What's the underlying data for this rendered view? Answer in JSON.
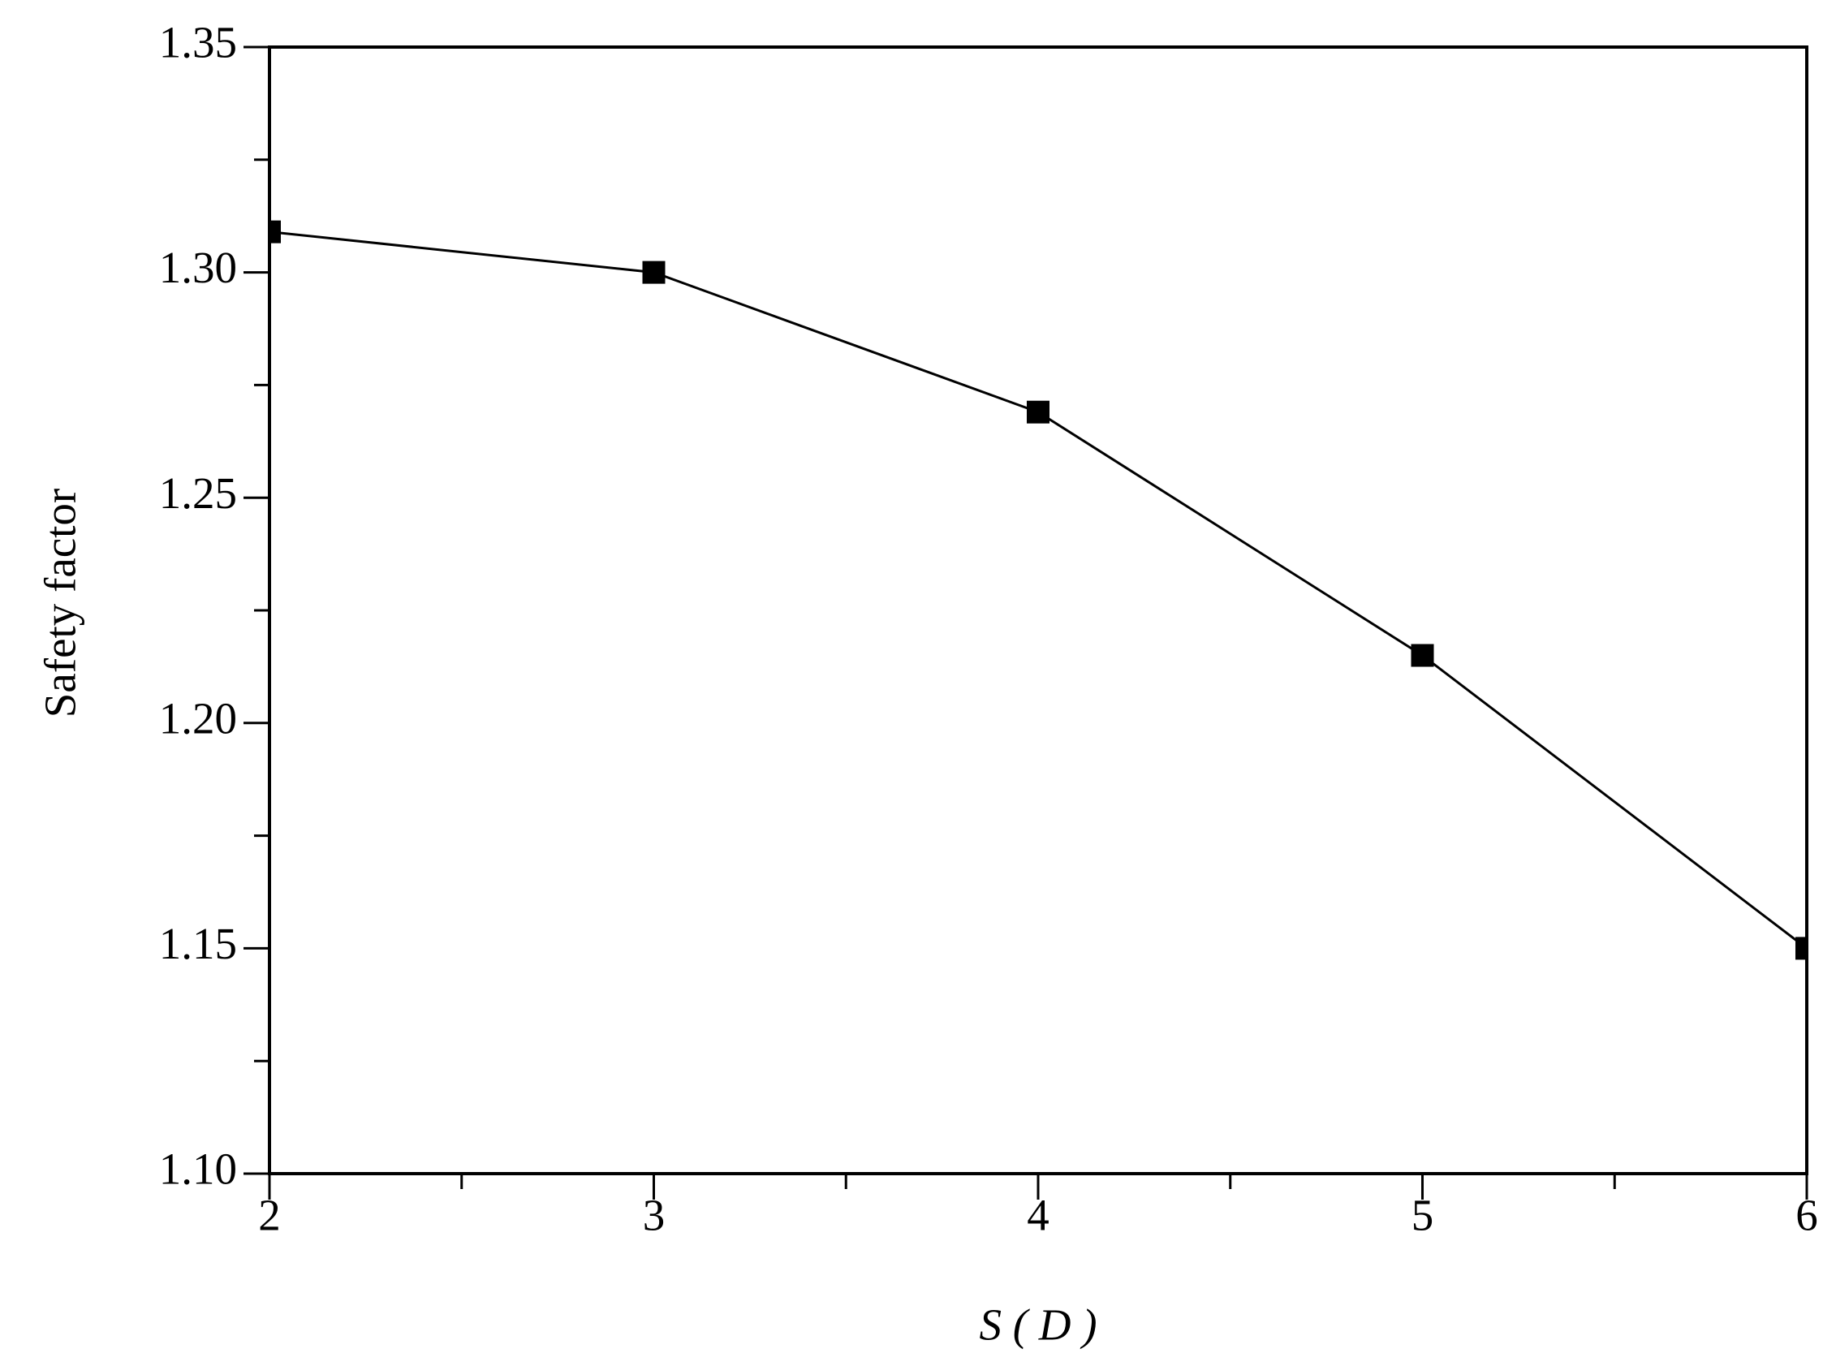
{
  "chart_data": {
    "type": "line",
    "xlabel": "S ( D )",
    "ylabel": "Safety factor",
    "x": [
      2,
      3,
      4,
      5,
      6
    ],
    "series": [
      {
        "color": "#000000",
        "marker": "square",
        "values": [
          1.309,
          1.3,
          1.269,
          1.215,
          1.15
        ]
      }
    ],
    "xlim": [
      2,
      6
    ],
    "xticks": [
      2,
      3,
      4,
      5,
      6
    ],
    "xminor_ticks": [
      2.5,
      3.5,
      4.5,
      5.5
    ],
    "ylim": [
      1.1,
      1.35
    ],
    "yticks": [
      {
        "value": 1.1,
        "label": "1.10"
      },
      {
        "value": 1.15,
        "label": "1.15"
      },
      {
        "value": 1.2,
        "label": "1.20"
      },
      {
        "value": 1.25,
        "label": "1.25"
      },
      {
        "value": 1.3,
        "label": "1.30"
      },
      {
        "value": 1.35,
        "label": "1.35"
      }
    ],
    "yminor_ticks": [
      1.125,
      1.175,
      1.225,
      1.275,
      1.325
    ],
    "grid": false
  }
}
